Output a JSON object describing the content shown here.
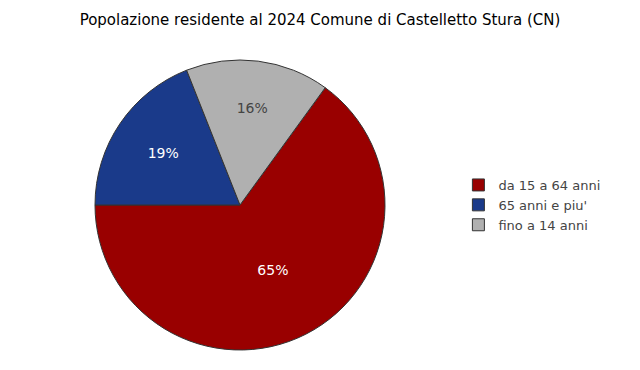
{
  "chart_data": {
    "type": "pie",
    "title": "Popolazione residente al 2024 Comune di Castelletto Stura (CN)",
    "categories": [
      "da 15 a 64 anni",
      "65 anni e piu'",
      "fino a 14 anni"
    ],
    "values": [
      65,
      19,
      16
    ],
    "value_labels": [
      "65%",
      "19%",
      "16%"
    ],
    "colors": [
      "#990000",
      "#1a3a8a",
      "#b0b0b0"
    ],
    "data_labels": true,
    "legend": "right"
  }
}
